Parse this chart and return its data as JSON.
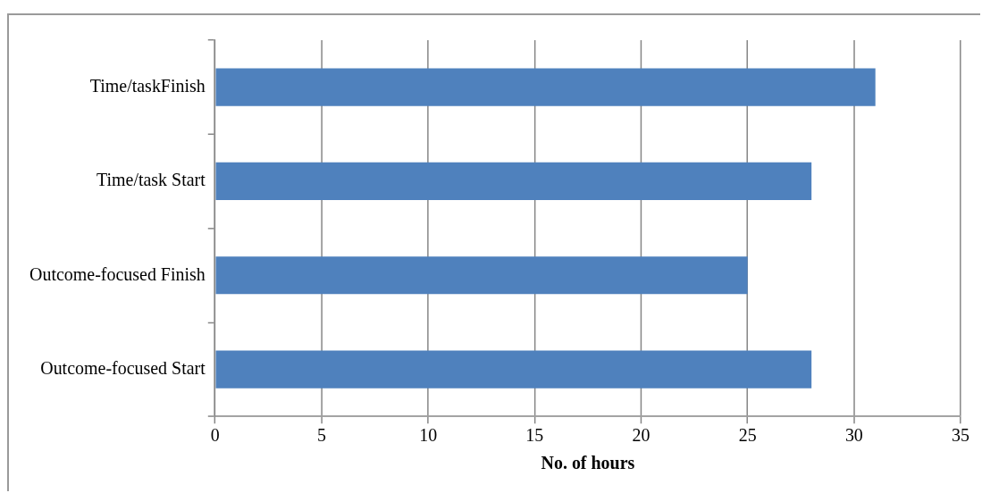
{
  "chart_data": {
    "type": "bar",
    "orientation": "horizontal",
    "categories": [
      "Time/taskFinish",
      "Time/task Start",
      "Outcome-focused Finish",
      "Outcome-focused Start"
    ],
    "values": [
      31,
      28,
      25,
      28
    ],
    "color": "#4f81bd",
    "xlabel": "No. of hours",
    "xlim": [
      0,
      35
    ],
    "xticks": [
      0,
      5,
      10,
      15,
      20,
      25,
      30,
      35
    ],
    "grid": "x"
  }
}
